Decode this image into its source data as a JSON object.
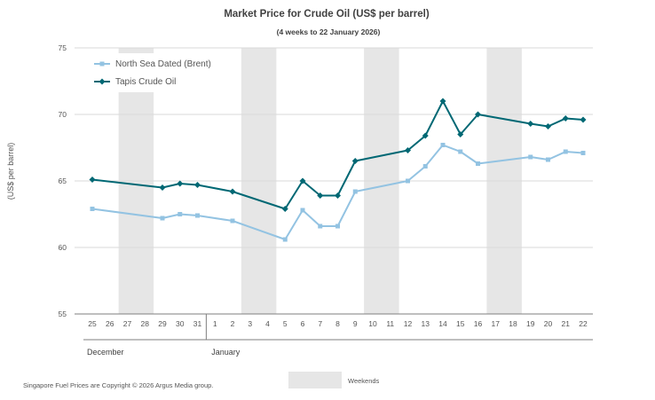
{
  "chart_data": {
    "type": "line",
    "title": "Market Price for  Crude Oil  (US$ per barrel)",
    "subtitle": "(4 weeks to 22 January 2026)",
    "ylabel": "(US$ per barrel)",
    "ylim": [
      55,
      75
    ],
    "yticks": [
      55,
      60,
      65,
      70,
      75
    ],
    "grid": true,
    "categories": [
      "25",
      "26",
      "27",
      "28",
      "29",
      "30",
      "31",
      "1",
      "2",
      "3",
      "4",
      "5",
      "6",
      "7",
      "8",
      "9",
      "10",
      "11",
      "12",
      "13",
      "14",
      "15",
      "16",
      "17",
      "18",
      "19",
      "20",
      "21",
      "22"
    ],
    "months": [
      {
        "label": "December",
        "start_index": 0
      },
      {
        "label": "January",
        "start_index": 7
      }
    ],
    "weekend_ranges": [
      [
        2,
        3
      ],
      [
        9,
        10
      ],
      [
        16,
        17
      ],
      [
        23,
        24
      ]
    ],
    "series": [
      {
        "name": "North Sea Dated (Brent)",
        "color": "#93c3e2",
        "marker": "square",
        "values": [
          62.9,
          null,
          null,
          null,
          62.2,
          62.5,
          62.4,
          null,
          62.0,
          null,
          null,
          60.6,
          62.8,
          61.6,
          61.6,
          64.2,
          null,
          null,
          65.0,
          66.1,
          67.7,
          67.2,
          66.3,
          null,
          null,
          66.8,
          66.6,
          67.2,
          67.1
        ]
      },
      {
        "name": "Tapis Crude Oil",
        "color": "#006874",
        "marker": "diamond",
        "values": [
          65.1,
          null,
          null,
          null,
          64.5,
          64.8,
          64.7,
          null,
          64.2,
          null,
          null,
          62.9,
          65.0,
          63.9,
          63.9,
          66.5,
          null,
          null,
          67.3,
          68.4,
          71.0,
          68.5,
          70.0,
          null,
          null,
          69.3,
          69.1,
          69.7,
          69.6
        ]
      }
    ],
    "legend_position": "top-left",
    "weekend_legend": "Weekends",
    "footnote": "Singapore  Fuel  Prices  are Copyright  ©  2026  Argus  Media  group."
  },
  "colors": {
    "weekend": "#e6e6e6",
    "grid": "#d9d9d9",
    "axis": "#7f7f7f"
  }
}
